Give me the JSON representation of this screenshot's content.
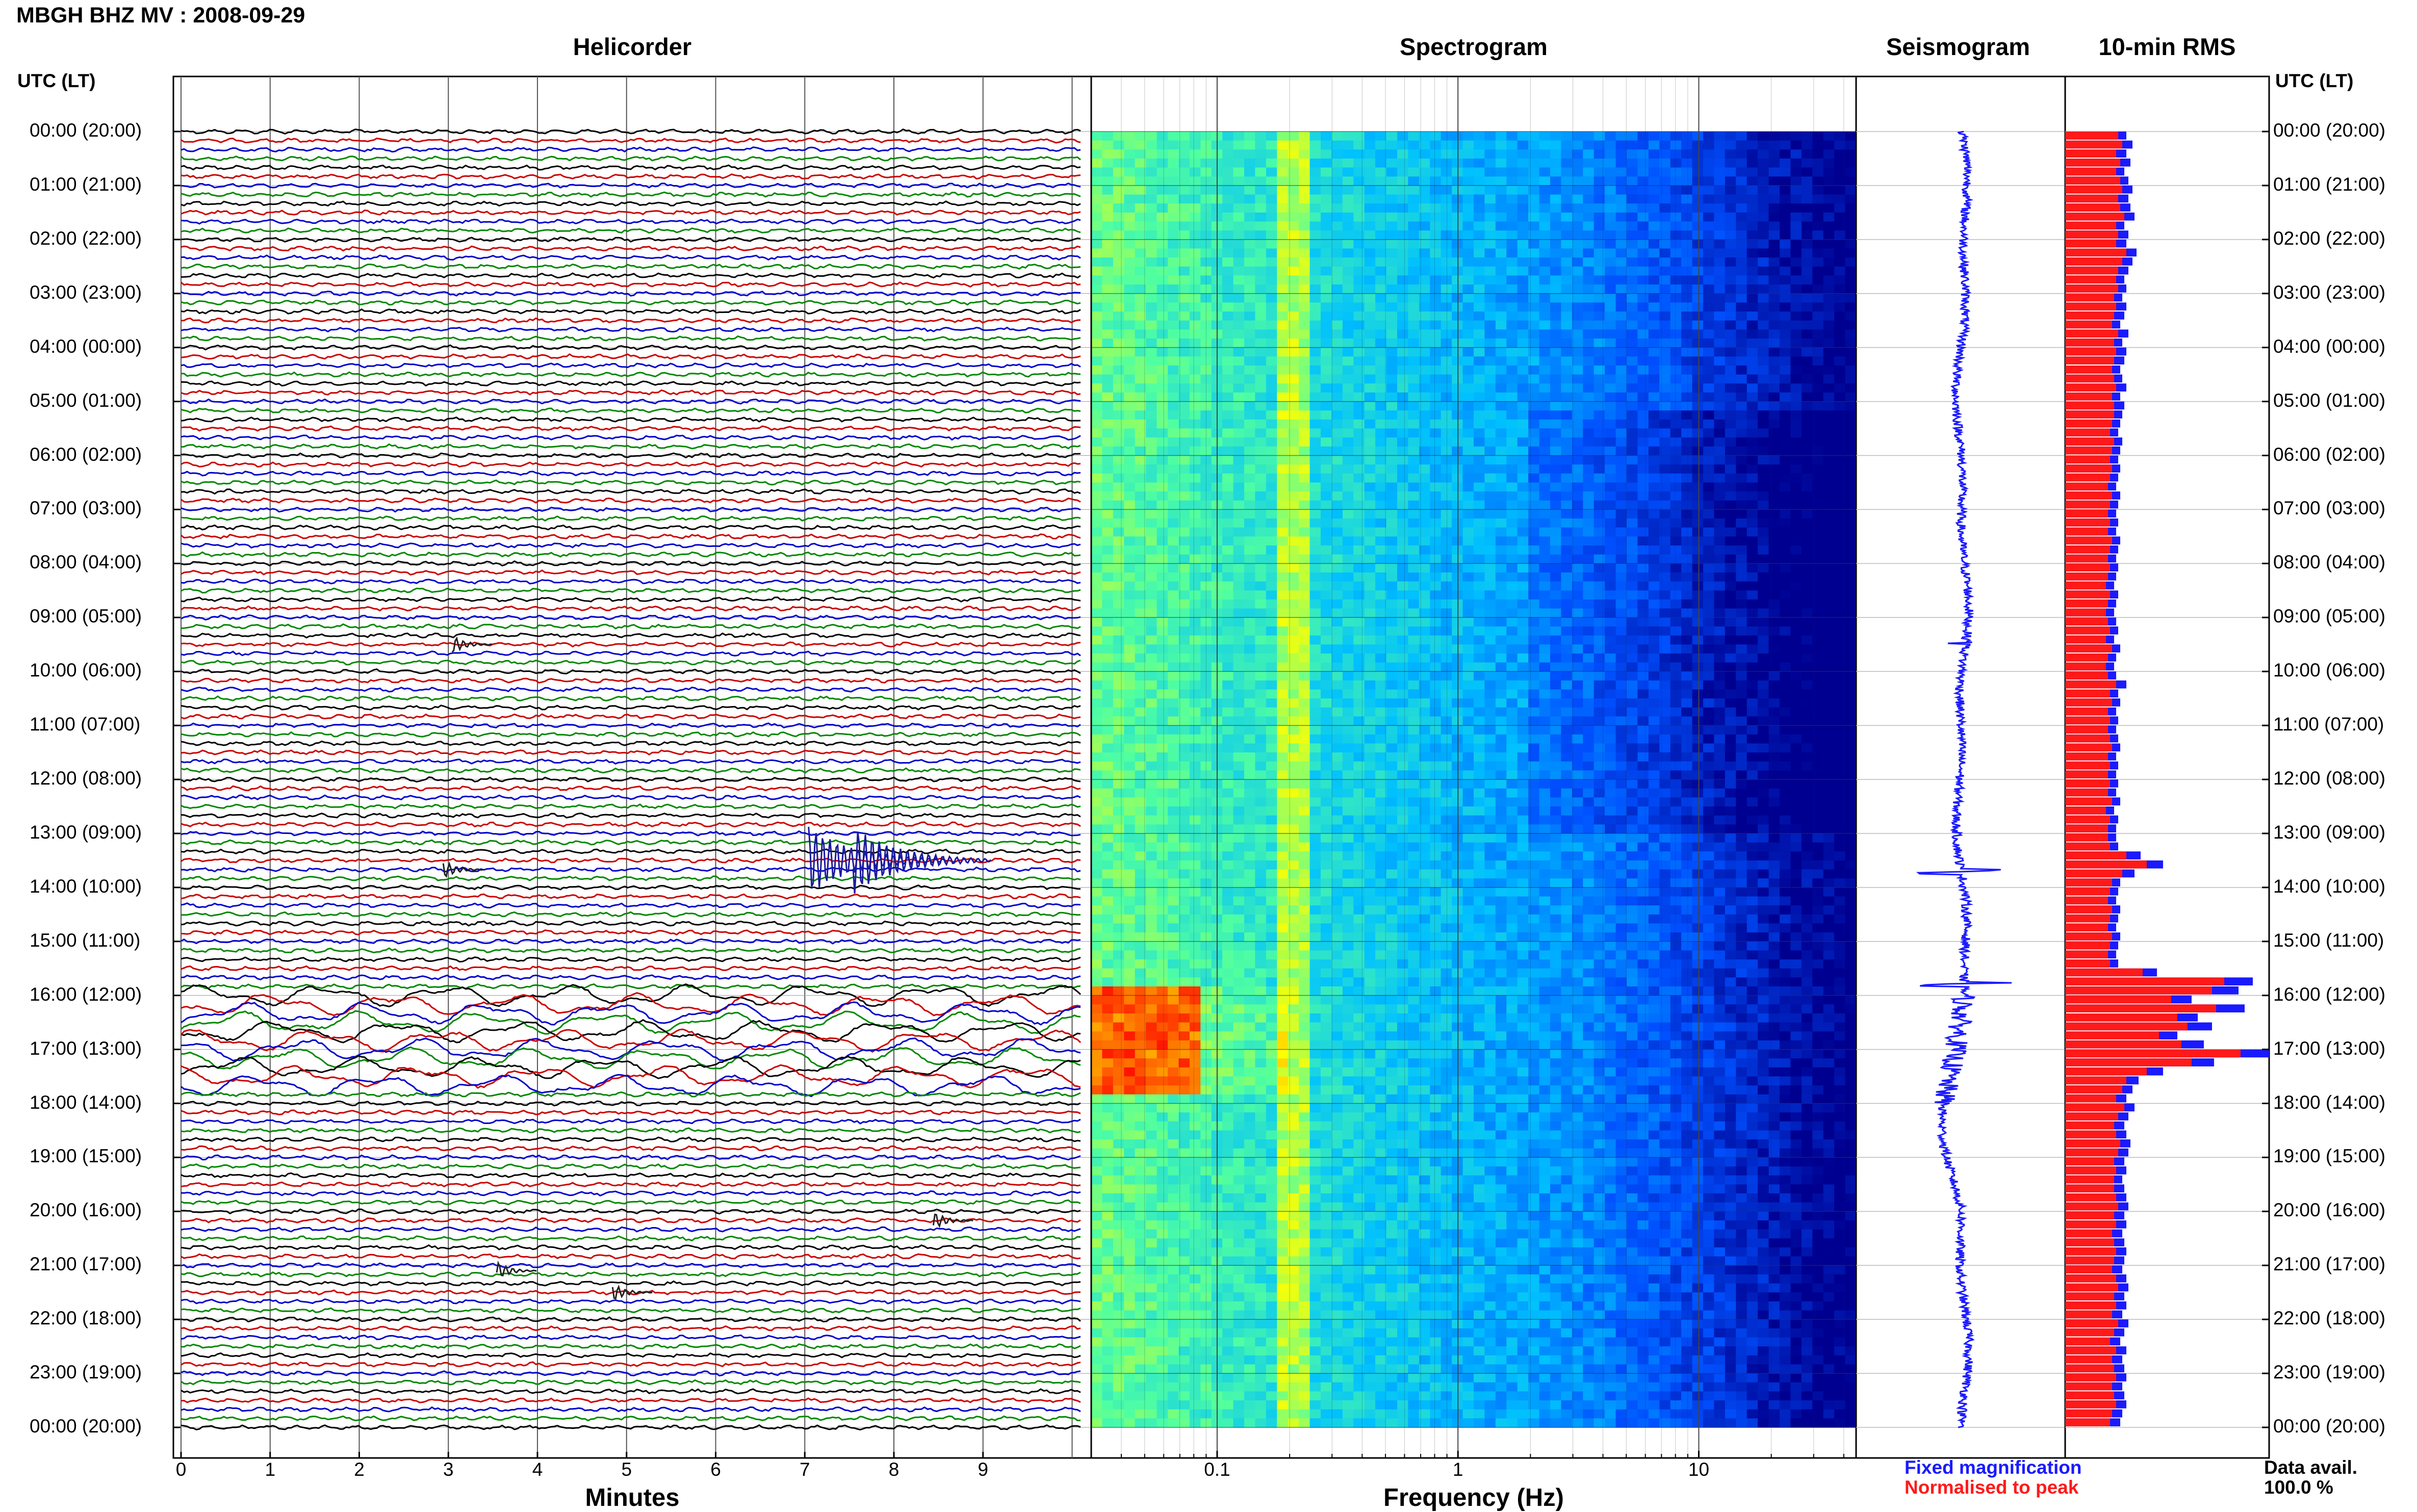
{
  "page": {
    "title": "MBGH BHZ MV : 2008-09-29",
    "time_header_left": "UTC (LT)",
    "time_header_right": "UTC (LT)"
  },
  "panels": {
    "helicorder": {
      "title": "Helicorder",
      "xlabel": "Minutes"
    },
    "spectrogram": {
      "title": "Spectrogram",
      "xlabel": "Frequency (Hz)"
    },
    "seismogram": {
      "title": "Seismogram"
    },
    "rms": {
      "title": "10-min RMS"
    }
  },
  "time_labels": [
    "00:00 (20:00)",
    "01:00 (21:00)",
    "02:00 (22:00)",
    "03:00 (23:00)",
    "04:00 (00:00)",
    "05:00 (01:00)",
    "06:00 (02:00)",
    "07:00 (03:00)",
    "08:00 (04:00)",
    "09:00 (05:00)",
    "10:00 (06:00)",
    "11:00 (07:00)",
    "12:00 (08:00)",
    "13:00 (09:00)",
    "14:00 (10:00)",
    "15:00 (11:00)",
    "16:00 (12:00)",
    "17:00 (13:00)",
    "18:00 (14:00)",
    "19:00 (15:00)",
    "20:00 (16:00)",
    "21:00 (17:00)",
    "22:00 (18:00)",
    "23:00 (19:00)",
    "00:00 (20:00)"
  ],
  "helicorder_ticks": [
    "0",
    "1",
    "2",
    "3",
    "4",
    "5",
    "6",
    "7",
    "8",
    "9"
  ],
  "spectrogram_ticks": [
    "0.1",
    "1",
    "10"
  ],
  "legend": {
    "fixed": "Fixed magnification",
    "normalised": "Normalised to peak",
    "fixed_color": "#1a1aff",
    "normalised_color": "#ff1a1a"
  },
  "data_availability": {
    "label": "Data avail.",
    "value": "100.0 %"
  },
  "chart_data": [
    {
      "type": "line",
      "name": "helicorder",
      "xlabel": "Minutes",
      "xlim": [
        0,
        10
      ],
      "trace_colors": [
        "#000000",
        "#cc0000",
        "#0000cc",
        "#008800"
      ],
      "events": [
        {
          "line_hours": 9.5,
          "minute": 3.1,
          "amplitude": "small"
        },
        {
          "line_hours": 13.5,
          "minute": 7.1,
          "amplitude": "large"
        },
        {
          "line_hours": 13.5,
          "minute": 7.6,
          "amplitude": "large"
        },
        {
          "line_hours": 13.67,
          "minute": 3.0,
          "amplitude": "small"
        },
        {
          "line_hours": 21.1,
          "minute": 3.6,
          "amplitude": "small"
        },
        {
          "line_hours": 21.5,
          "minute": 4.9,
          "amplitude": "small"
        },
        {
          "line_hours": 20.17,
          "minute": 8.5,
          "amplitude": "small"
        }
      ],
      "long_period_interval_hours": [
        16.0,
        17.8
      ]
    },
    {
      "type": "heatmap",
      "name": "spectrogram",
      "xlabel": "Frequency (Hz)",
      "x_scale": "log",
      "xlim": [
        0.03,
        45
      ],
      "ylim_hours": [
        0,
        24
      ],
      "colormap": [
        "#000090",
        "#0050ff",
        "#00c0ff",
        "#50ffa0",
        "#ffff00",
        "#ff8000",
        "#ff0000"
      ],
      "features": [
        {
          "note_freq_band_hz": [
            0.17,
            0.22
          ],
          "level": "high"
        },
        {
          "hours": [
            15.8,
            17.8
          ],
          "freq_band_hz": [
            0.03,
            0.08
          ],
          "level": "very high"
        }
      ]
    },
    {
      "type": "line",
      "name": "seismogram",
      "color": "#1a1aff"
    },
    {
      "type": "bar",
      "name": "10-min RMS",
      "bin_minutes": 10,
      "series": [
        {
          "name": "Fixed magnification",
          "color": "#1a1aff",
          "values": [
            0.3,
            0.33,
            0.3,
            0.32,
            0.29,
            0.31,
            0.33,
            0.31,
            0.32,
            0.34,
            0.29,
            0.31,
            0.3,
            0.35,
            0.33,
            0.31,
            0.29,
            0.3,
            0.28,
            0.3,
            0.29,
            0.27,
            0.31,
            0.28,
            0.3,
            0.29,
            0.27,
            0.28,
            0.3,
            0.27,
            0.29,
            0.28,
            0.27,
            0.26,
            0.28,
            0.27,
            0.26,
            0.27,
            0.26,
            0.25,
            0.27,
            0.26,
            0.25,
            0.26,
            0.25,
            0.27,
            0.26,
            0.25,
            0.26,
            0.25,
            0.24,
            0.26,
            0.25,
            0.24,
            0.25,
            0.26,
            0.24,
            0.27,
            0.25,
            0.24,
            0.25,
            0.3,
            0.26,
            0.27,
            0.25,
            0.26,
            0.25,
            0.26,
            0.27,
            0.25,
            0.26,
            0.25,
            0.26,
            0.25,
            0.27,
            0.24,
            0.26,
            0.25,
            0.25,
            0.26,
            0.37,
            0.48,
            0.34,
            0.27,
            0.26,
            0.25,
            0.27,
            0.26,
            0.25,
            0.27,
            0.26,
            0.25,
            0.26,
            0.45,
            0.92,
            0.85,
            0.62,
            0.88,
            0.65,
            0.72,
            0.55,
            0.68,
            1.0,
            0.73,
            0.48,
            0.36,
            0.33,
            0.3,
            0.34,
            0.31,
            0.29,
            0.3,
            0.32,
            0.31,
            0.29,
            0.3,
            0.28,
            0.29,
            0.3,
            0.31,
            0.29,
            0.3,
            0.28,
            0.29,
            0.3,
            0.29,
            0.28,
            0.3,
            0.31,
            0.29,
            0.3,
            0.28,
            0.31,
            0.29,
            0.27,
            0.3,
            0.28,
            0.29,
            0.3,
            0.28,
            0.29,
            0.3,
            0.28,
            0.27
          ]
        },
        {
          "name": "Normalised to peak",
          "color": "#ff1a1a",
          "values": [
            0.26,
            0.28,
            0.25,
            0.27,
            0.25,
            0.27,
            0.28,
            0.26,
            0.27,
            0.29,
            0.25,
            0.26,
            0.25,
            0.3,
            0.28,
            0.26,
            0.25,
            0.26,
            0.24,
            0.25,
            0.24,
            0.23,
            0.26,
            0.24,
            0.25,
            0.24,
            0.23,
            0.24,
            0.25,
            0.23,
            0.24,
            0.24,
            0.23,
            0.22,
            0.24,
            0.23,
            0.22,
            0.23,
            0.22,
            0.21,
            0.23,
            0.22,
            0.21,
            0.22,
            0.21,
            0.23,
            0.22,
            0.21,
            0.22,
            0.21,
            0.2,
            0.22,
            0.21,
            0.2,
            0.21,
            0.22,
            0.2,
            0.23,
            0.21,
            0.2,
            0.21,
            0.25,
            0.22,
            0.23,
            0.21,
            0.22,
            0.21,
            0.22,
            0.23,
            0.21,
            0.22,
            0.21,
            0.22,
            0.21,
            0.23,
            0.2,
            0.22,
            0.21,
            0.21,
            0.22,
            0.3,
            0.4,
            0.28,
            0.23,
            0.22,
            0.21,
            0.23,
            0.22,
            0.21,
            0.23,
            0.22,
            0.21,
            0.22,
            0.38,
            0.78,
            0.72,
            0.52,
            0.74,
            0.55,
            0.6,
            0.46,
            0.57,
            0.86,
            0.62,
            0.4,
            0.3,
            0.28,
            0.25,
            0.29,
            0.26,
            0.24,
            0.25,
            0.27,
            0.26,
            0.24,
            0.25,
            0.24,
            0.24,
            0.25,
            0.26,
            0.24,
            0.25,
            0.23,
            0.24,
            0.25,
            0.24,
            0.23,
            0.25,
            0.26,
            0.24,
            0.25,
            0.23,
            0.26,
            0.24,
            0.22,
            0.25,
            0.23,
            0.24,
            0.25,
            0.23,
            0.24,
            0.25,
            0.23,
            0.22
          ]
        }
      ]
    }
  ]
}
